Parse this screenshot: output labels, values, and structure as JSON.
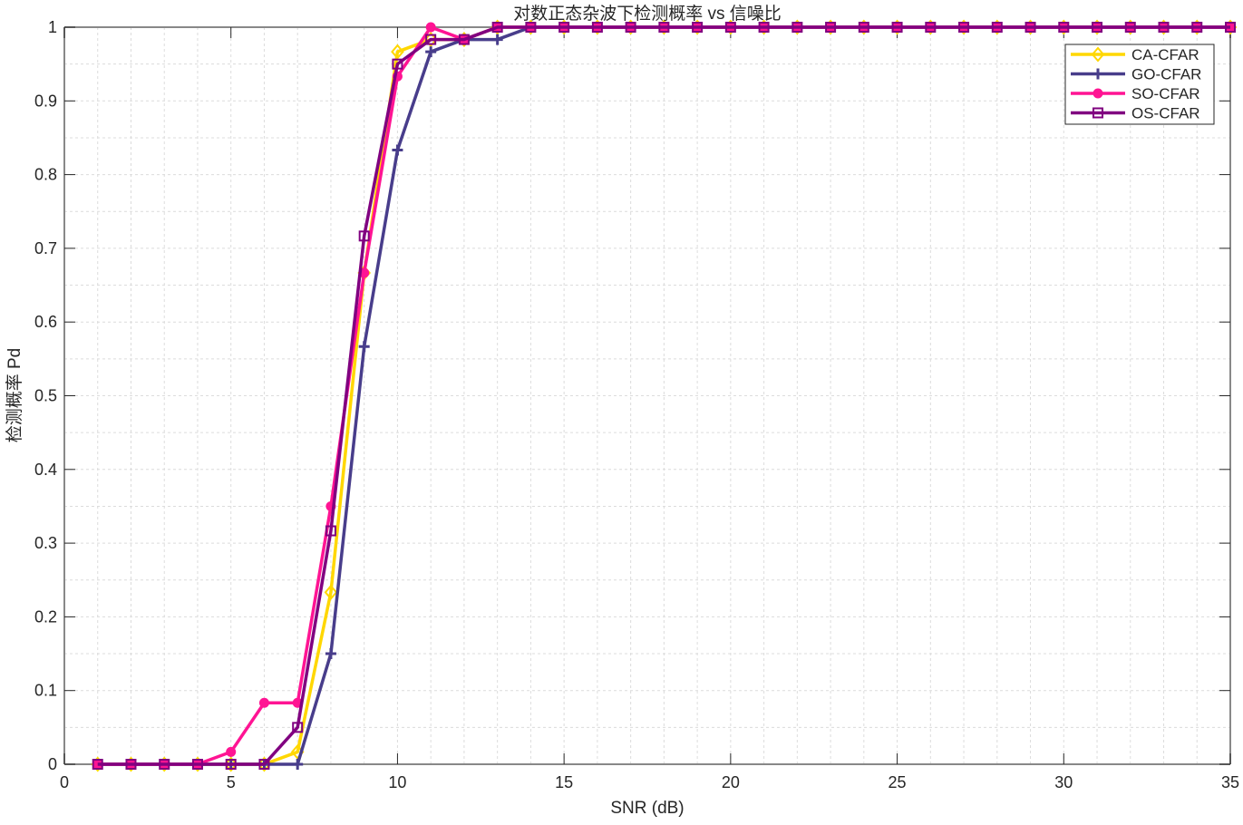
{
  "chart_data": {
    "type": "line",
    "title": "对数正态杂波下检测概率 vs 信噪比",
    "xlabel": "SNR (dB)",
    "ylabel": "检测概率 Pd",
    "xlim": [
      0,
      35
    ],
    "ylim": [
      0,
      1
    ],
    "xticks": [
      0,
      5,
      10,
      15,
      20,
      25,
      30,
      35
    ],
    "yticks": [
      0,
      0.1,
      0.2,
      0.3,
      0.4,
      0.5,
      0.6,
      0.7,
      0.8,
      0.9,
      1
    ],
    "grid": true,
    "minor_grid": true,
    "legend_position": "top-right",
    "x": [
      1,
      2,
      3,
      4,
      5,
      6,
      7,
      8,
      9,
      10,
      11,
      12,
      13,
      14,
      15,
      16,
      17,
      18,
      19,
      20,
      21,
      22,
      23,
      24,
      25,
      26,
      27,
      28,
      29,
      30,
      31,
      32,
      33,
      34,
      35
    ],
    "series": [
      {
        "name": "CA-CFAR",
        "color": "#FFD700",
        "marker": "diamond",
        "values": [
          0,
          0,
          0,
          0,
          0,
          0,
          0.0167,
          0.2333,
          0.6667,
          0.9667,
          0.9833,
          0.9833,
          1,
          1,
          1,
          1,
          1,
          1,
          1,
          1,
          1,
          1,
          1,
          1,
          1,
          1,
          1,
          1,
          1,
          1,
          1,
          1,
          1,
          1,
          1
        ]
      },
      {
        "name": "GO-CFAR",
        "color": "#483D8B",
        "marker": "plus",
        "values": [
          0,
          0,
          0,
          0,
          0,
          0,
          0,
          0.15,
          0.5667,
          0.8333,
          0.9667,
          0.9833,
          0.9833,
          1,
          1,
          1,
          1,
          1,
          1,
          1,
          1,
          1,
          1,
          1,
          1,
          1,
          1,
          1,
          1,
          1,
          1,
          1,
          1,
          1,
          1
        ]
      },
      {
        "name": "SO-CFAR",
        "color": "#FF1493",
        "marker": "circle",
        "values": [
          0,
          0,
          0,
          0,
          0.0167,
          0.0833,
          0.0833,
          0.35,
          0.6667,
          0.9333,
          1,
          0.9833,
          1,
          1,
          1,
          1,
          1,
          1,
          1,
          1,
          1,
          1,
          1,
          1,
          1,
          1,
          1,
          1,
          1,
          1,
          1,
          1,
          1,
          1,
          1
        ]
      },
      {
        "name": "OS-CFAR",
        "color": "#800080",
        "marker": "square",
        "values": [
          0,
          0,
          0,
          0,
          0,
          0,
          0.05,
          0.3167,
          0.7167,
          0.95,
          0.9833,
          0.9833,
          1,
          1,
          1,
          1,
          1,
          1,
          1,
          1,
          1,
          1,
          1,
          1,
          1,
          1,
          1,
          1,
          1,
          1,
          1,
          1,
          1,
          1,
          1
        ]
      }
    ]
  }
}
